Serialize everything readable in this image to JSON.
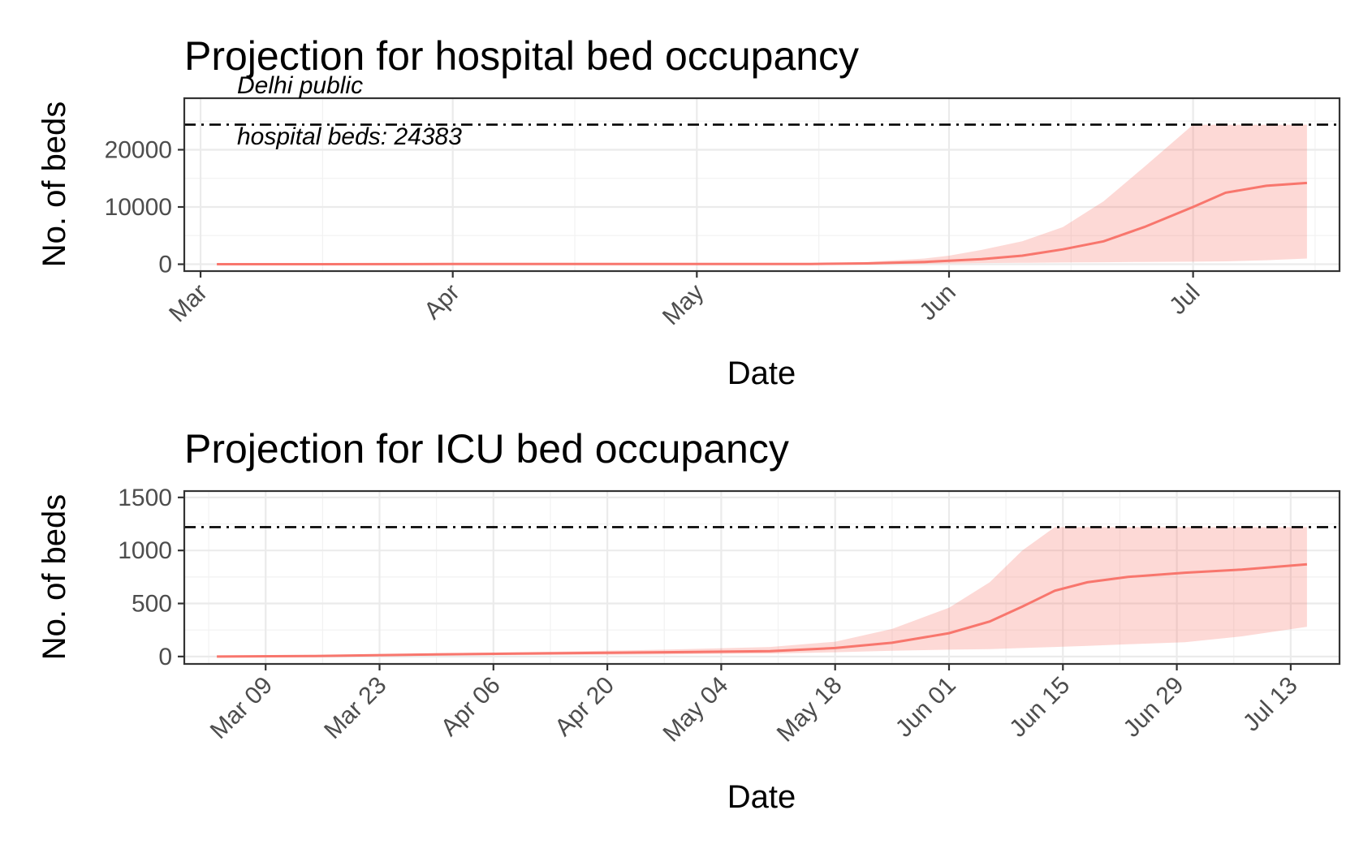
{
  "chart_data": [
    {
      "type": "line",
      "title": "Projection for hospital bed occupancy",
      "xlabel": "Date",
      "ylabel": "No. of beds",
      "x_ticks": [
        "Mar",
        "Apr",
        "May",
        "Jun",
        "Jul"
      ],
      "y_ticks": [
        "0",
        "10000",
        "20000"
      ],
      "ylim": [
        -1200,
        29000
      ],
      "xlim": [
        "2020-02-28",
        "2020-07-19"
      ],
      "reference_line": {
        "value": 24383,
        "label_line1": "Delhi public",
        "label_line2": "hospital beds: 24383"
      },
      "series": [
        {
          "x": [
            "2020-03-03",
            "2020-03-15",
            "2020-04-01",
            "2020-04-15",
            "2020-05-01",
            "2020-05-15",
            "2020-05-22",
            "2020-05-29",
            "2020-06-01",
            "2020-06-05",
            "2020-06-10",
            "2020-06-15",
            "2020-06-20",
            "2020-06-25",
            "2020-07-01",
            "2020-07-05",
            "2020-07-10",
            "2020-07-15"
          ],
          "y": [
            0,
            0,
            30,
            40,
            50,
            50,
            150,
            400,
            600,
            900,
            1500,
            2600,
            4000,
            6500,
            10000,
            12500,
            13700,
            14200
          ],
          "y_lower": [
            0,
            0,
            0,
            0,
            0,
            0,
            20,
            80,
            150,
            200,
            250,
            300,
            350,
            400,
            450,
            500,
            700,
            1000
          ],
          "y_upper": [
            0,
            0,
            60,
            80,
            100,
            150,
            400,
            1000,
            1500,
            2500,
            4000,
            6500,
            11000,
            17000,
            24383,
            24383,
            24383,
            24383
          ]
        }
      ]
    },
    {
      "type": "line",
      "title": "Projection for ICU bed occupancy",
      "xlabel": "Date",
      "ylabel": "No. of beds",
      "x_ticks": [
        "Mar 09",
        "Mar 23",
        "Apr 06",
        "Apr 20",
        "May 04",
        "May 18",
        "Jun 01",
        "Jun 15",
        "Jun 29",
        "Jul 13"
      ],
      "y_ticks": [
        "0",
        "500",
        "1000",
        "1500"
      ],
      "ylim": [
        -70,
        1560
      ],
      "xlim": [
        "2020-02-28",
        "2020-07-19"
      ],
      "reference_line": {
        "value": 1220
      },
      "series": [
        {
          "x": [
            "2020-03-03",
            "2020-03-15",
            "2020-03-30",
            "2020-04-13",
            "2020-04-27",
            "2020-05-10",
            "2020-05-18",
            "2020-05-25",
            "2020-06-01",
            "2020-06-06",
            "2020-06-10",
            "2020-06-14",
            "2020-06-18",
            "2020-06-23",
            "2020-06-30",
            "2020-07-07",
            "2020-07-15"
          ],
          "y": [
            0,
            5,
            20,
            30,
            40,
            50,
            80,
            130,
            220,
            330,
            470,
            620,
            700,
            750,
            790,
            820,
            870
          ],
          "y_lower": [
            0,
            2,
            8,
            15,
            20,
            28,
            40,
            55,
            65,
            70,
            80,
            90,
            100,
            115,
            135,
            190,
            280
          ],
          "y_upper": [
            0,
            8,
            30,
            45,
            65,
            90,
            140,
            260,
            460,
            700,
            1000,
            1220,
            1220,
            1220,
            1220,
            1220,
            1220
          ]
        }
      ]
    }
  ]
}
